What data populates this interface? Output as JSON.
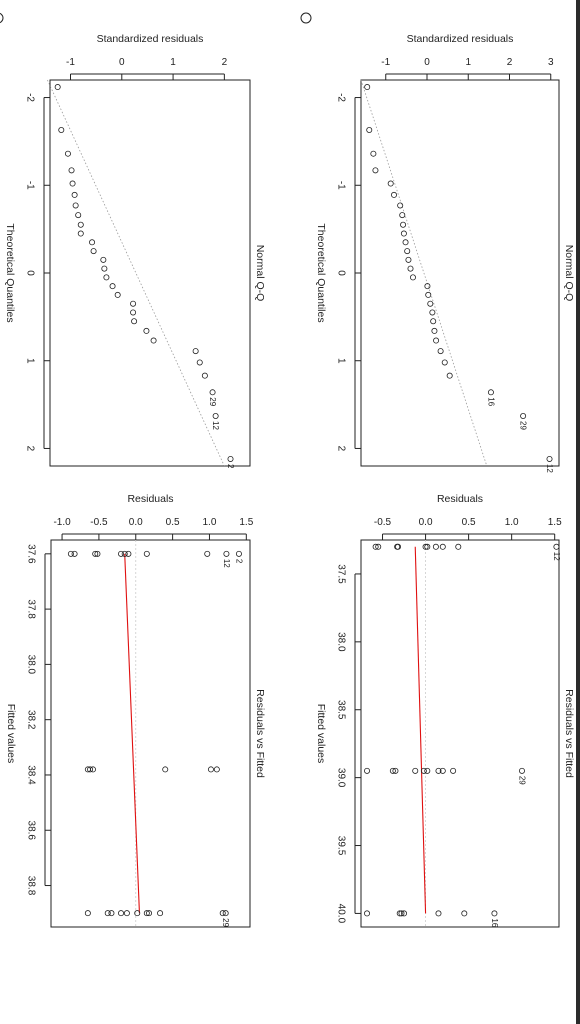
{
  "chart_data": [
    {
      "type": "scatter",
      "title": "Normal Q-Q",
      "xlabel": "Theoretical Quantiles",
      "ylabel": "Standardized residuals",
      "xlim": [
        -2.2,
        2.2
      ],
      "ylim": [
        -1.4,
        2.5
      ],
      "xticks": [
        "-2",
        "-1",
        "0",
        "1",
        "2"
      ],
      "yticks": [
        "-1",
        "0",
        "1",
        "2"
      ],
      "reference_line": {
        "x": [
          -2.2,
          2.2
        ],
        "y": [
          -1.45,
          2.0
        ]
      },
      "series": [
        {
          "values": [
            {
              "x": -2.12,
              "y": -1.25
            },
            {
              "x": -1.63,
              "y": -1.18
            },
            {
              "x": -1.36,
              "y": -1.05
            },
            {
              "x": -1.17,
              "y": -0.98
            },
            {
              "x": -1.02,
              "y": -0.96
            },
            {
              "x": -0.89,
              "y": -0.92
            },
            {
              "x": -0.77,
              "y": -0.9
            },
            {
              "x": -0.66,
              "y": -0.85
            },
            {
              "x": -0.55,
              "y": -0.8
            },
            {
              "x": -0.45,
              "y": -0.8
            },
            {
              "x": -0.35,
              "y": -0.58
            },
            {
              "x": -0.25,
              "y": -0.55
            },
            {
              "x": -0.15,
              "y": -0.36
            },
            {
              "x": -0.05,
              "y": -0.34
            },
            {
              "x": 0.05,
              "y": -0.3
            },
            {
              "x": 0.15,
              "y": -0.18
            },
            {
              "x": 0.25,
              "y": -0.08
            },
            {
              "x": 0.35,
              "y": 0.22
            },
            {
              "x": 0.45,
              "y": 0.22
            },
            {
              "x": 0.55,
              "y": 0.24
            },
            {
              "x": 0.66,
              "y": 0.48
            },
            {
              "x": 0.77,
              "y": 0.62
            },
            {
              "x": 0.89,
              "y": 1.44
            },
            {
              "x": 1.02,
              "y": 1.52
            },
            {
              "x": 1.17,
              "y": 1.62
            },
            {
              "x": 1.36,
              "y": 1.77,
              "label": "29"
            },
            {
              "x": 1.63,
              "y": 1.83,
              "label": "12"
            },
            {
              "x": 2.12,
              "y": 2.12,
              "label": "2"
            }
          ]
        }
      ]
    },
    {
      "type": "scatter",
      "title": "Normal Q-Q",
      "xlabel": "Theoretical Quantiles",
      "ylabel": "Standardized residuals",
      "xlim": [
        -2.2,
        2.2
      ],
      "ylim": [
        -1.6,
        3.2
      ],
      "xticks": [
        "-2",
        "-1",
        "0",
        "1",
        "2"
      ],
      "yticks": [
        "-1",
        "0",
        "1",
        "2",
        "3"
      ],
      "reference_line": {
        "x": [
          -2.2,
          2.2
        ],
        "y": [
          -1.6,
          1.45
        ]
      },
      "series": [
        {
          "values": [
            {
              "x": -2.12,
              "y": -1.45
            },
            {
              "x": -1.63,
              "y": -1.4
            },
            {
              "x": -1.36,
              "y": -1.3
            },
            {
              "x": -1.17,
              "y": -1.25
            },
            {
              "x": -1.02,
              "y": -0.88
            },
            {
              "x": -0.89,
              "y": -0.8
            },
            {
              "x": -0.77,
              "y": -0.65
            },
            {
              "x": -0.66,
              "y": -0.6
            },
            {
              "x": -0.55,
              "y": -0.58
            },
            {
              "x": -0.45,
              "y": -0.56
            },
            {
              "x": -0.35,
              "y": -0.52
            },
            {
              "x": -0.25,
              "y": -0.48
            },
            {
              "x": -0.15,
              "y": -0.45
            },
            {
              "x": -0.05,
              "y": -0.4
            },
            {
              "x": 0.05,
              "y": -0.34
            },
            {
              "x": 0.15,
              "y": 0.01
            },
            {
              "x": 0.25,
              "y": 0.03
            },
            {
              "x": 0.35,
              "y": 0.08
            },
            {
              "x": 0.45,
              "y": 0.13
            },
            {
              "x": 0.55,
              "y": 0.15
            },
            {
              "x": 0.66,
              "y": 0.18
            },
            {
              "x": 0.77,
              "y": 0.22
            },
            {
              "x": 0.89,
              "y": 0.33
            },
            {
              "x": 1.02,
              "y": 0.43
            },
            {
              "x": 1.17,
              "y": 0.55
            },
            {
              "x": 1.36,
              "y": 1.55,
              "label": "16"
            },
            {
              "x": 1.63,
              "y": 2.33,
              "label": "29"
            },
            {
              "x": 2.12,
              "y": 2.97,
              "label": "12"
            }
          ]
        }
      ]
    },
    {
      "type": "scatter",
      "title": "Residuals vs Fitted",
      "xlabel": "Fitted values",
      "ylabel": "Residuals",
      "xlim": [
        37.55,
        38.95
      ],
      "ylim": [
        -1.15,
        1.55
      ],
      "xticks": [
        "37.6",
        "37.8",
        "38.0",
        "38.2",
        "38.4",
        "38.6",
        "38.8"
      ],
      "yticks": [
        "-1.0",
        "-0.5",
        "0.0",
        "0.5",
        "1.0",
        "1.5"
      ],
      "smooth_line": {
        "x": [
          37.6,
          38.9
        ],
        "y": [
          -0.15,
          0.05
        ]
      },
      "series": [
        {
          "values": [
            {
              "x": 37.6,
              "y": -0.88
            },
            {
              "x": 37.6,
              "y": -0.83
            },
            {
              "x": 37.6,
              "y": -0.55
            },
            {
              "x": 37.6,
              "y": -0.52
            },
            {
              "x": 37.6,
              "y": -0.2
            },
            {
              "x": 37.6,
              "y": -0.15
            },
            {
              "x": 37.6,
              "y": -0.1
            },
            {
              "x": 37.6,
              "y": 0.15
            },
            {
              "x": 37.6,
              "y": 0.97
            },
            {
              "x": 37.6,
              "y": 1.23,
              "label": "12"
            },
            {
              "x": 37.6,
              "y": 1.4,
              "label": "2"
            },
            {
              "x": 38.38,
              "y": -0.65
            },
            {
              "x": 38.38,
              "y": -0.62
            },
            {
              "x": 38.38,
              "y": -0.58
            },
            {
              "x": 38.38,
              "y": 0.4
            },
            {
              "x": 38.38,
              "y": 1.02
            },
            {
              "x": 38.38,
              "y": 1.1
            },
            {
              "x": 38.9,
              "y": -0.65
            },
            {
              "x": 38.9,
              "y": -0.38
            },
            {
              "x": 38.9,
              "y": -0.33
            },
            {
              "x": 38.9,
              "y": -0.2
            },
            {
              "x": 38.9,
              "y": -0.12
            },
            {
              "x": 38.9,
              "y": 0.02
            },
            {
              "x": 38.9,
              "y": 0.15
            },
            {
              "x": 38.9,
              "y": 0.18
            },
            {
              "x": 38.9,
              "y": 0.33
            },
            {
              "x": 38.9,
              "y": 1.18
            },
            {
              "x": 38.9,
              "y": 1.22,
              "label": "29"
            }
          ]
        }
      ]
    },
    {
      "type": "scatter",
      "title": "Residuals vs Fitted",
      "xlabel": "Fitted values",
      "ylabel": "Residuals",
      "xlim": [
        37.25,
        40.1
      ],
      "ylim": [
        -0.75,
        1.55
      ],
      "xticks": [
        "37.5",
        "38.0",
        "38.5",
        "39.0",
        "39.5",
        "40.0"
      ],
      "yticks": [
        "-0.5",
        "0.0",
        "0.5",
        "1.0",
        "1.5"
      ],
      "smooth_line": {
        "x": [
          37.3,
          40.0
        ],
        "y": [
          -0.12,
          0.0
        ]
      },
      "series": [
        {
          "values": [
            {
              "x": 37.3,
              "y": -0.58
            },
            {
              "x": 37.3,
              "y": -0.55
            },
            {
              "x": 37.3,
              "y": -0.33
            },
            {
              "x": 37.3,
              "y": -0.32
            },
            {
              "x": 37.3,
              "y": 0.0
            },
            {
              "x": 37.3,
              "y": 0.02
            },
            {
              "x": 37.3,
              "y": 0.12
            },
            {
              "x": 37.3,
              "y": 0.2
            },
            {
              "x": 37.3,
              "y": 0.38
            },
            {
              "x": 37.3,
              "y": 1.52,
              "label": "12"
            },
            {
              "x": 38.95,
              "y": -0.68
            },
            {
              "x": 38.95,
              "y": -0.38
            },
            {
              "x": 38.95,
              "y": -0.35
            },
            {
              "x": 38.95,
              "y": -0.12
            },
            {
              "x": 38.95,
              "y": -0.02
            },
            {
              "x": 38.95,
              "y": 0.02
            },
            {
              "x": 38.95,
              "y": 0.15
            },
            {
              "x": 38.95,
              "y": 0.2
            },
            {
              "x": 38.95,
              "y": 0.32
            },
            {
              "x": 38.95,
              "y": 1.12,
              "label": "29"
            },
            {
              "x": 40.0,
              "y": -0.68
            },
            {
              "x": 40.0,
              "y": -0.3
            },
            {
              "x": 40.0,
              "y": -0.28
            },
            {
              "x": 40.0,
              "y": -0.25
            },
            {
              "x": 40.0,
              "y": 0.15
            },
            {
              "x": 40.0,
              "y": 0.45
            },
            {
              "x": 40.0,
              "y": 0.8,
              "label": "16"
            }
          ]
        }
      ]
    }
  ]
}
